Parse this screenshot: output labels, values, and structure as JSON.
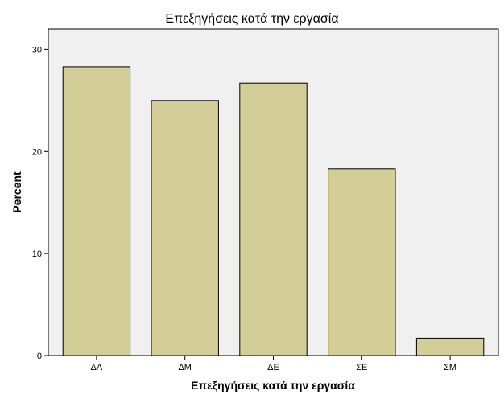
{
  "chart_data": {
    "type": "bar",
    "title": "Επεξηγήσεις κατά την εργασία",
    "xlabel": "Επεξηγήσεις κατά την εργασία",
    "ylabel": "Percent",
    "categories": [
      "ΔΑ",
      "ΔΜ",
      "ΔΕ",
      "ΣΕ",
      "ΣΜ"
    ],
    "values": [
      28.3,
      25.0,
      26.7,
      18.3,
      1.7
    ],
    "ylim": [
      0,
      32
    ],
    "yticks": [
      0,
      10,
      20,
      30
    ],
    "grid": false,
    "colors": {
      "bar_fill": "#d3ce98",
      "bar_stroke": "#000000",
      "plot_background": "#f0f0f0",
      "page_background": "#ffffff"
    }
  }
}
